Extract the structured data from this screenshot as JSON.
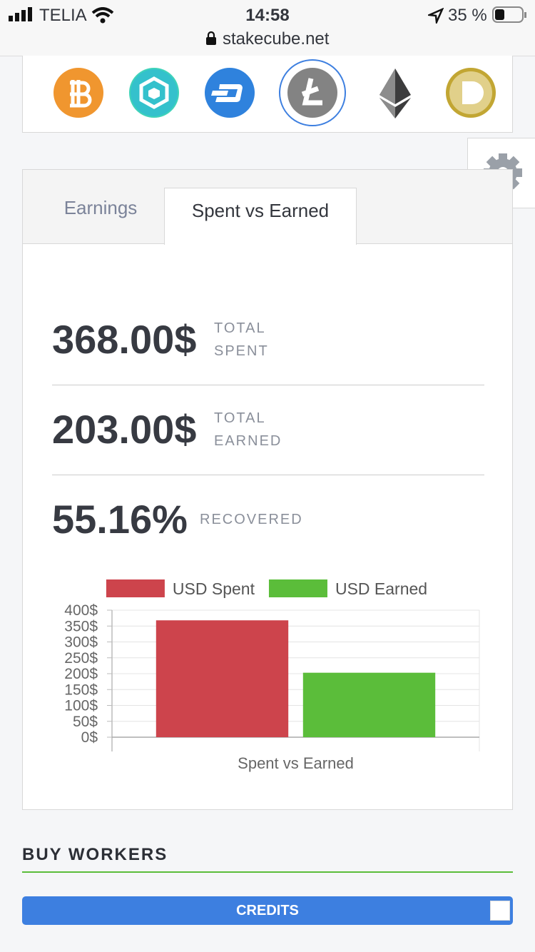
{
  "status_bar": {
    "carrier": "TELIA",
    "time": "14:58",
    "battery": "35 %",
    "url": "stakecube.net"
  },
  "tabs": [
    "Earnings",
    "Spent vs Earned"
  ],
  "stats": [
    {
      "value": "368.00$",
      "label": "TOTAL SPENT"
    },
    {
      "value": "203.00$",
      "label": "TOTAL EARNED"
    },
    {
      "value": "55.16%",
      "label": "RECOVERED"
    }
  ],
  "chart_data": {
    "type": "bar",
    "categories": [
      "Spent vs Earned"
    ],
    "series": [
      {
        "name": "USD Spent",
        "color": "#cd444c",
        "values": [
          368
        ]
      },
      {
        "name": "USD Earned",
        "color": "#5bbd3a",
        "values": [
          203
        ]
      }
    ],
    "ylim": [
      0,
      400
    ],
    "yticks": [
      {
        "value": 0,
        "label": "0$"
      },
      {
        "value": 50,
        "label": "50$"
      },
      {
        "value": 100,
        "label": "100$"
      },
      {
        "value": 150,
        "label": "150$"
      },
      {
        "value": 200,
        "label": "200$"
      },
      {
        "value": 250,
        "label": "250$"
      },
      {
        "value": 300,
        "label": "300$"
      },
      {
        "value": 350,
        "label": "350$"
      },
      {
        "value": 400,
        "label": "400$"
      }
    ],
    "grid": true,
    "legend": "top"
  },
  "section": {
    "title": "BUY WORKERS"
  },
  "button": {
    "label": "CREDITS"
  }
}
